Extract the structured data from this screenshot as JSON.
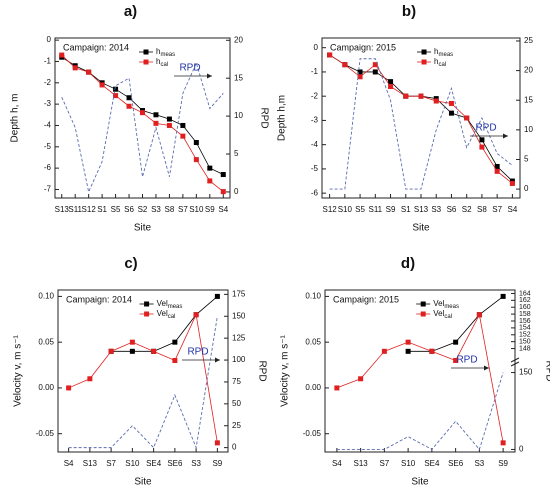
{
  "chart_data": [
    {
      "type": "line",
      "panel": "a)",
      "annotation": "Campaign: 2014",
      "rpd_label": "RPD",
      "ylabel": "Depth h, m",
      "y2label": "RPD",
      "xlabel": "Site",
      "categories": [
        "S13",
        "S11",
        "S12",
        "S1",
        "S5",
        "S6",
        "S2",
        "S3",
        "S8",
        "S7",
        "S10",
        "S9",
        "S4"
      ],
      "ylim": [
        -7.4,
        0.1
      ],
      "yticks": [
        -7,
        -6,
        -5,
        -4,
        -3,
        -2,
        -1,
        0
      ],
      "y2lim": [
        -0.8,
        20.3
      ],
      "y2ticks": [
        0,
        5,
        10,
        15,
        20
      ],
      "series": [
        {
          "name": "h",
          "name_sub": "meas",
          "color": "#000000",
          "values": [
            -0.8,
            -1.2,
            -1.5,
            -2.0,
            -2.3,
            -2.7,
            -3.3,
            -3.5,
            -3.7,
            -4.0,
            -4.8,
            -6.0,
            -6.3
          ]
        },
        {
          "name": "h",
          "name_sub": "cal",
          "color": "#e02020",
          "values": [
            -0.7,
            -1.3,
            -1.5,
            -2.1,
            -2.6,
            -3.1,
            -3.4,
            -3.9,
            -4.0,
            -4.5,
            -5.6,
            -6.6,
            -7.1
          ]
        },
        {
          "color": "#5a6bb0",
          "axis": "y2",
          "dashed": true,
          "values": [
            12.5,
            8.5,
            0,
            4,
            14,
            15,
            2,
            8.5,
            2,
            13,
            17,
            11,
            13
          ]
        }
      ]
    },
    {
      "type": "line",
      "panel": "b)",
      "annotation": "Campaign: 2015",
      "rpd_label": "RPD",
      "ylabel": "Depth h,m",
      "y2label": "RPD",
      "xlabel": "Site",
      "categories": [
        "S12",
        "S10",
        "S5",
        "S11",
        "S9",
        "S1",
        "S13",
        "S3",
        "S6",
        "S2",
        "S8",
        "S7",
        "S4"
      ],
      "ylim": [
        -6.2,
        0.4
      ],
      "yticks": [
        -6,
        -5,
        -4,
        -3,
        -2,
        -1,
        0
      ],
      "y2lim": [
        -1.5,
        25.5
      ],
      "y2ticks": [
        0,
        5,
        10,
        15,
        20,
        25
      ],
      "series": [
        {
          "name": "h",
          "name_sub": "meas",
          "color": "#000000",
          "values": [
            -0.3,
            -0.7,
            -1.0,
            -1.0,
            -1.4,
            -2.0,
            -2.0,
            -2.1,
            -2.7,
            -2.9,
            -3.8,
            -4.9,
            -5.5
          ]
        },
        {
          "name": "h",
          "name_sub": "cal",
          "color": "#e02020",
          "values": [
            -0.3,
            -0.7,
            -1.2,
            -0.7,
            -1.6,
            -2.0,
            -2.0,
            -2.2,
            -2.3,
            -2.9,
            -4.1,
            -5.1,
            -5.6
          ]
        },
        {
          "color": "#5a6bb0",
          "axis": "y2",
          "dashed": true,
          "values": [
            0,
            0,
            22,
            22,
            15,
            0,
            0,
            10,
            17,
            7,
            12,
            6,
            4
          ]
        }
      ]
    },
    {
      "type": "line",
      "panel": "c)",
      "annotation": "Campaign: 2014",
      "rpd_label": "RPD",
      "ylabel": "Velocity v, m s⁻¹",
      "y2label": "RPD",
      "xlabel": "Site",
      "categories": [
        "S4",
        "S13",
        "S7",
        "S10",
        "SE4",
        "SE6",
        "S3",
        "S9"
      ],
      "ylim": [
        -0.07,
        0.107
      ],
      "yticks": [
        {
          "value": -0.05,
          "label": "-0.05"
        },
        {
          "value": 0,
          "label": "0.00"
        },
        {
          "value": 0.05,
          "label": "0.05"
        },
        {
          "value": 0.1,
          "label": "0.10"
        }
      ],
      "y2lim": [
        -5,
        180
      ],
      "y2ticks": [
        0,
        25,
        50,
        75,
        100,
        125,
        150,
        175
      ],
      "series": [
        {
          "name": "Vel",
          "name_sub": "meas",
          "color": "#000000",
          "values": [
            null,
            null,
            0.04,
            0.04,
            0.04,
            0.05,
            0.08,
            0.1
          ]
        },
        {
          "name": "Vel",
          "name_sub": "cal",
          "color": "#e02020",
          "values": [
            0.0,
            0.01,
            0.04,
            0.05,
            0.04,
            0.03,
            0.08,
            -0.06
          ]
        },
        {
          "color": "#5a6bb0",
          "axis": "y2",
          "dashed": true,
          "values": [
            0,
            0,
            0,
            25,
            0,
            60,
            0,
            150
          ]
        }
      ]
    },
    {
      "type": "line",
      "panel": "d)",
      "annotation": "Campaign: 2015",
      "rpd_label": "RPD",
      "ylabel": "Velocity v, m s⁻¹",
      "y2label": "RPD",
      "xlabel": "Site",
      "categories": [
        "S4",
        "S13",
        "S7",
        "S10",
        "SE4",
        "SE6",
        "S3",
        "S9"
      ],
      "ylim": [
        -0.07,
        0.107
      ],
      "yticks": [
        {
          "value": -0.05,
          "label": "-0.05"
        },
        {
          "value": 0,
          "label": "0.00"
        },
        {
          "value": 0.05,
          "label": "0.05"
        },
        {
          "value": 0.1,
          "label": "0.10"
        }
      ],
      "y2lim": [
        -5,
        155
      ],
      "y2ticks": [
        0,
        150
      ],
      "y2lim_upper": [
        147,
        165
      ],
      "y2ticks_upper": [
        148,
        150,
        152,
        154,
        156,
        158,
        160,
        162,
        164
      ],
      "series": [
        {
          "name": "Vel",
          "name_sub": "meas",
          "color": "#000000",
          "values": [
            null,
            null,
            null,
            0.04,
            0.04,
            0.05,
            0.08,
            0.1
          ]
        },
        {
          "name": "Vel",
          "name_sub": "cal",
          "color": "#e02020",
          "values": [
            0.0,
            0.01,
            0.04,
            0.05,
            0.04,
            0.03,
            0.08,
            -0.06
          ]
        },
        {
          "color": "#5a6bb0",
          "axis": "y2",
          "dashed": true,
          "values": [
            0,
            0,
            0,
            25,
            0,
            55,
            0,
            150
          ]
        }
      ]
    }
  ]
}
